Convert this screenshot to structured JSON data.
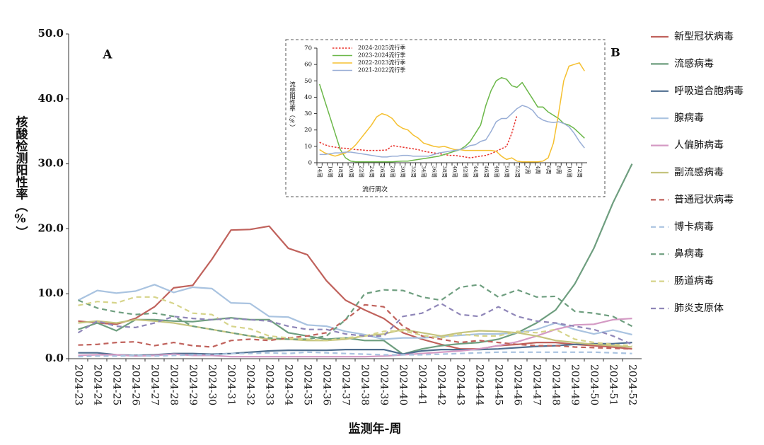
{
  "chart_data": [
    {
      "type": "line",
      "panel_label": "A",
      "y_label": "核酸检测阳性率（%）",
      "x_label": "监测年-周",
      "legend": "right",
      "grid": false,
      "ylim": [
        0,
        50
      ],
      "yticks": [
        {
          "value": 0,
          "label": "0.0"
        },
        {
          "value": 10,
          "label": "10.0"
        },
        {
          "value": 20,
          "label": "20.0"
        },
        {
          "value": 30,
          "label": "30.0"
        },
        {
          "value": 40,
          "label": "40.0"
        },
        {
          "value": 50,
          "label": "50.0"
        }
      ],
      "categories": [
        "2024-23",
        "2024-24",
        "2024-25",
        "2024-26",
        "2024-27",
        "2024-28",
        "2024-29",
        "2024-30",
        "2024-31",
        "2024-32",
        "2024-33",
        "2024-34",
        "2024-35",
        "2024-36",
        "2024-37",
        "2024-38",
        "2024-39",
        "2024-40",
        "2024-41",
        "2024-42",
        "2024-43",
        "2024-44",
        "2024-45",
        "2024-46",
        "2024-47",
        "2024-48",
        "2024-49",
        "2024-50",
        "2024-51",
        "2024-52"
      ],
      "series": [
        {
          "name": "新型冠状病毒",
          "color": "#c0625c",
          "line_style": "solid",
          "values": [
            5.8,
            5.5,
            5.3,
            6.2,
            8.0,
            10.9,
            11.3,
            15.3,
            19.8,
            19.9,
            20.4,
            17.0,
            16.0,
            12.0,
            9.0,
            7.5,
            6.2,
            4.0,
            3.0,
            2.2,
            1.5,
            1.5,
            2.0,
            2.2,
            2.5,
            2.5,
            2.2,
            2.0,
            1.8,
            1.5
          ]
        },
        {
          "name": "流感病毒",
          "color": "#6e9e7f",
          "line_style": "solid",
          "values": [
            4.5,
            5.5,
            4.3,
            6.0,
            6.0,
            5.8,
            5.7,
            6.0,
            6.3,
            6.0,
            6.0,
            4.0,
            3.5,
            3.0,
            3.2,
            2.8,
            2.8,
            0.7,
            1.5,
            2.0,
            2.3,
            2.5,
            3.0,
            4.0,
            5.5,
            7.5,
            11.5,
            17.0,
            24.0,
            30.0
          ]
        },
        {
          "name": "呼吸道合胞病毒",
          "color": "#4f6e8f",
          "line_style": "solid",
          "values": [
            0.9,
            0.9,
            0.6,
            0.5,
            0.6,
            0.8,
            0.8,
            0.7,
            0.8,
            1.0,
            1.2,
            1.3,
            1.3,
            1.3,
            1.4,
            1.4,
            1.4,
            0.7,
            1.2,
            1.4,
            1.4,
            1.4,
            1.5,
            1.7,
            1.9,
            2.0,
            2.2,
            2.3,
            2.3,
            2.5
          ]
        },
        {
          "name": "腺病毒",
          "color": "#a9c3e0",
          "line_style": "solid",
          "values": [
            9.0,
            10.5,
            10.1,
            10.4,
            11.4,
            10.2,
            11.0,
            10.8,
            8.6,
            8.5,
            6.5,
            6.4,
            5.2,
            5.0,
            4.2,
            3.7,
            3.0,
            3.2,
            3.2,
            3.4,
            3.6,
            3.8,
            3.8,
            4.0,
            4.5,
            5.5,
            4.5,
            3.8,
            4.4,
            3.7
          ]
        },
        {
          "name": "人偏肺病毒",
          "color": "#d49ac4",
          "line_style": "solid",
          "values": [
            0.5,
            0.6,
            0.6,
            0.4,
            0.5,
            0.7,
            0.5,
            0.5,
            0.3,
            0.3,
            0.3,
            0.3,
            0.3,
            0.3,
            0.3,
            0.3,
            0.4,
            0.6,
            0.8,
            1.0,
            1.2,
            1.5,
            2.0,
            2.6,
            3.5,
            4.5,
            5.2,
            5.3,
            6.0,
            6.2
          ]
        },
        {
          "name": "副流感病毒",
          "color": "#c5c47e",
          "line_style": "solid",
          "values": [
            5.5,
            5.8,
            5.5,
            6.0,
            5.8,
            5.5,
            5.0,
            4.5,
            4.0,
            3.5,
            3.0,
            3.0,
            2.8,
            2.8,
            3.0,
            3.5,
            3.8,
            4.5,
            4.0,
            3.5,
            4.0,
            4.3,
            4.2,
            4.0,
            3.5,
            2.8,
            2.5,
            2.2,
            2.0,
            1.8
          ]
        },
        {
          "name": "普通冠状病毒",
          "color": "#c0625c",
          "line_style": "dashed",
          "values": [
            2.1,
            2.2,
            2.5,
            2.6,
            2.0,
            2.5,
            2.0,
            1.8,
            2.8,
            3.0,
            2.8,
            3.2,
            3.5,
            4.0,
            6.0,
            8.3,
            8.0,
            5.0,
            3.5,
            3.0,
            2.5,
            2.8,
            2.5,
            2.2,
            2.0,
            2.0,
            1.8,
            1.7,
            1.6,
            1.5
          ]
        },
        {
          "name": "博卡病毒",
          "color": "#a9c3e0",
          "line_style": "dashed",
          "values": [
            0.3,
            0.4,
            0.4,
            0.5,
            0.4,
            0.5,
            0.6,
            0.6,
            0.8,
            0.8,
            0.9,
            0.8,
            1.0,
            0.9,
            0.8,
            0.7,
            0.6,
            0.6,
            0.6,
            0.7,
            0.8,
            0.9,
            1.0,
            1.0,
            1.0,
            1.0,
            1.0,
            1.0,
            0.9,
            0.8
          ]
        },
        {
          "name": "鼻病毒",
          "color": "#6e9e7f",
          "line_style": "dashed",
          "values": [
            9.0,
            7.8,
            7.2,
            6.8,
            7.0,
            6.5,
            5.0,
            4.5,
            4.0,
            3.5,
            3.2,
            3.0,
            3.0,
            3.5,
            6.0,
            10.0,
            10.6,
            10.5,
            9.5,
            9.0,
            11.0,
            11.4,
            9.5,
            10.6,
            9.5,
            9.6,
            7.3,
            7.0,
            6.5,
            5.0
          ]
        },
        {
          "name": "肠道病毒",
          "color": "#d6d48a",
          "line_style": "dashed",
          "values": [
            8.2,
            8.8,
            8.6,
            9.5,
            9.5,
            8.5,
            7.0,
            6.8,
            5.0,
            4.6,
            3.5,
            3.2,
            3.0,
            2.8,
            3.2,
            3.5,
            4.2,
            4.3,
            3.6,
            3.2,
            3.8,
            3.5,
            3.5,
            4.2,
            4.0,
            4.5,
            3.0,
            2.5,
            2.2,
            2.0
          ]
        },
        {
          "name": "肺炎支原体",
          "color": "#8f86b8",
          "line_style": "dashed",
          "values": [
            4.0,
            5.8,
            5.0,
            4.8,
            5.5,
            6.5,
            6.2,
            6.0,
            6.2,
            6.0,
            5.8,
            5.0,
            4.5,
            4.5,
            3.8,
            3.5,
            3.5,
            6.5,
            7.0,
            8.5,
            6.8,
            6.5,
            8.0,
            6.5,
            5.8,
            5.5,
            5.0,
            4.5,
            3.5,
            2.2
          ]
        }
      ]
    },
    {
      "type": "line",
      "panel_label": "B",
      "y_label": "流感阳性率（%）",
      "x_label": "流行周次",
      "legend": "upper left",
      "grid": false,
      "ylim": [
        0,
        70
      ],
      "yticks": [
        0,
        10,
        20,
        30,
        40,
        50,
        60,
        70
      ],
      "categories": [
        "14周",
        null,
        "16周",
        null,
        "18周",
        null,
        "20周",
        null,
        "22周",
        null,
        "24周",
        null,
        "26周",
        null,
        "28周",
        null,
        "30周",
        null,
        "32周",
        null,
        "34周",
        null,
        "36周",
        null,
        "38周",
        null,
        "40周",
        null,
        "42周",
        null,
        "44周",
        null,
        "46周",
        null,
        "48周",
        null,
        "50周",
        null,
        "52周",
        null,
        "2周",
        null,
        "4周",
        null,
        "6周",
        null,
        "8周",
        null,
        "10周",
        null,
        "12周",
        null
      ],
      "series": [
        {
          "name": "2024-2025流行季",
          "color": "#e8302a",
          "line_style": "dotted",
          "values": [
            12.5,
            11,
            10,
            9.5,
            9,
            8.8,
            8.5,
            8,
            7.8,
            7.5,
            7.5,
            7.5,
            7.6,
            7.8,
            10.5,
            10,
            9.5,
            9,
            8.5,
            8,
            7,
            6.5,
            6,
            5.5,
            5,
            4.5,
            4.5,
            4,
            3.5,
            3,
            3.5,
            4,
            4.5,
            5.5,
            7,
            8.5,
            10,
            18,
            29,
            null,
            null,
            null,
            null,
            null,
            null,
            null,
            null,
            null,
            null,
            null,
            null,
            null
          ]
        },
        {
          "name": "2023-2024流行季",
          "color": "#6cb84a",
          "line_style": "solid",
          "values": [
            48,
            38,
            28,
            18,
            8,
            3,
            1,
            0.5,
            0.5,
            0.5,
            0.5,
            0.5,
            0.5,
            0.5,
            0.5,
            0.8,
            1,
            1,
            1.5,
            2,
            2.5,
            3,
            3.5,
            4,
            5,
            6,
            7,
            8,
            10,
            13,
            18,
            23,
            35,
            44,
            50,
            52,
            51,
            47,
            46,
            49,
            44,
            39,
            34,
            34,
            31,
            29,
            27,
            24,
            23,
            21,
            18,
            15
          ]
        },
        {
          "name": "2022-2023流行季",
          "color": "#f5c030",
          "line_style": "solid",
          "values": [
            8,
            6,
            5,
            4,
            5,
            6,
            8,
            11,
            15,
            19,
            23,
            28,
            30,
            29,
            27,
            23,
            21,
            20,
            17,
            15,
            12,
            11,
            10,
            9.5,
            10,
            9,
            8,
            8,
            7.5,
            7.5,
            7.5,
            7.5,
            7.5,
            7.5,
            7,
            4,
            2,
            3,
            1,
            0.5,
            0.5,
            0.5,
            0.5,
            1,
            3,
            12,
            30,
            50,
            59,
            60,
            61,
            56
          ]
        },
        {
          "name": "2021-2022流行季",
          "color": "#99aed6",
          "line_style": "solid",
          "values": [
            5,
            5,
            5.5,
            6,
            6,
            6.5,
            6.5,
            6,
            5.5,
            5,
            4.5,
            4,
            3.5,
            3.5,
            4,
            4,
            4.5,
            4.5,
            4,
            4,
            4,
            4,
            5,
            6,
            6.5,
            7,
            7.5,
            8,
            9,
            10.5,
            11,
            13,
            14,
            19,
            25,
            27,
            27,
            30,
            33,
            35,
            34,
            32,
            28,
            26,
            25,
            24.5,
            25,
            24,
            22,
            18,
            13,
            9
          ]
        }
      ]
    }
  ]
}
